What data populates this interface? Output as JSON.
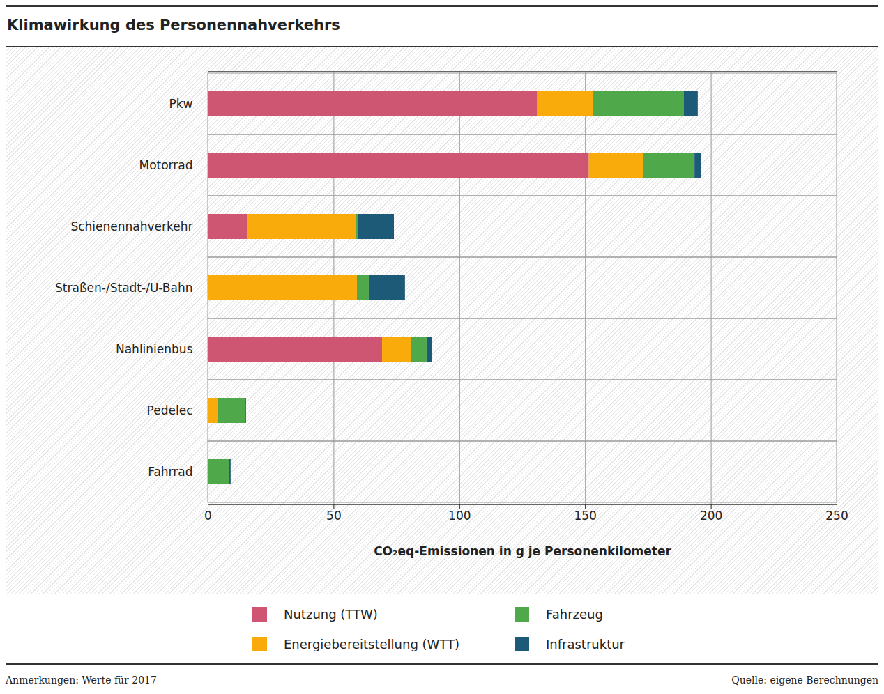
{
  "chart_data": {
    "type": "bar",
    "orientation": "horizontal",
    "stacked": true,
    "title": "Klimawirkung des Personennahverkehrs",
    "xlabel": "CO₂eq-Emissionen in g je Personenkilometer",
    "categories": [
      "Pkw",
      "Motorrad",
      "Schienennahverkehr",
      "Straßen-/Stadt-/U-Bahn",
      "Nahlinienbus",
      "Pedelec",
      "Fahrrad"
    ],
    "series": [
      {
        "name": "Nutzung (TTW)",
        "color": "#cf5673",
        "values": [
          131,
          151.5,
          15.8,
          0,
          69.3,
          0,
          0
        ]
      },
      {
        "name": "Energiebereitstellung (WTT)",
        "color": "#f8ab0b",
        "values": [
          22,
          21.5,
          43,
          59.3,
          11.4,
          3.9,
          0
        ]
      },
      {
        "name": "Fahrzeug",
        "color": "#4fa84a",
        "values": [
          36.3,
          20.5,
          0.8,
          4.7,
          6.3,
          10.8,
          8.6
        ]
      },
      {
        "name": "Infrastruktur",
        "color": "#1d5a78",
        "values": [
          5.5,
          2.5,
          14.4,
          14.4,
          2,
          0.5,
          0.5
        ]
      }
    ],
    "xlim": [
      0,
      250
    ],
    "xticks": [
      0,
      50,
      100,
      150,
      200,
      250
    ],
    "grid": true,
    "legend": "bottom",
    "note": "Anmerkungen: Werte für 2017",
    "source": "Quelle: eigene Berechnungen"
  }
}
